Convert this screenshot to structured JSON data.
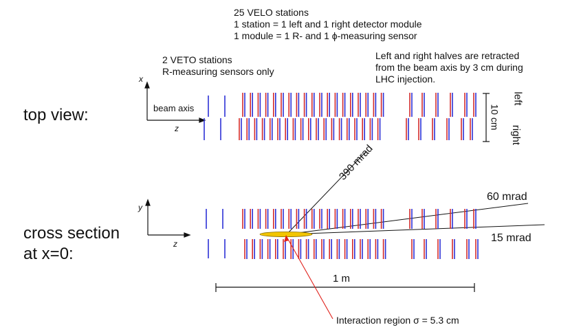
{
  "header": {
    "lines": [
      "25 VELO stations",
      "1 station  = 1 left and 1 right detector module",
      "1 module = 1 R- and 1 ϕ-measuring sensor"
    ]
  },
  "veto_note": {
    "lines": [
      "2 VETO stations",
      "R-measuring sensors only"
    ]
  },
  "retract_note": {
    "lines": [
      "Left and right halves are retracted",
      "from the beam axis by 3 cm during",
      "LHC injection."
    ]
  },
  "top_view": {
    "title": "top view:",
    "beam_axis": "beam axis",
    "axis_up": "x",
    "axis_right": "z",
    "scale": "10 cm",
    "side_top": "left",
    "side_bottom": "right"
  },
  "cross_section": {
    "title_line1": "cross section",
    "title_line2": "at x=0:",
    "axis_up": "y",
    "axis_right": "z"
  },
  "angles": [
    "390 mrad",
    "60 mrad",
    "15 mrad"
  ],
  "length_scale": "1 m",
  "interaction": "Interaction region  σ = 5.3 cm",
  "colors": {
    "r_sensor": "#d42a2a",
    "phi_sensor": "#2b2fd6",
    "veto": "#2b2fd6",
    "interaction_region": "#f2c500",
    "interaction_pointer": "#e0201a",
    "lines": "#111111"
  }
}
